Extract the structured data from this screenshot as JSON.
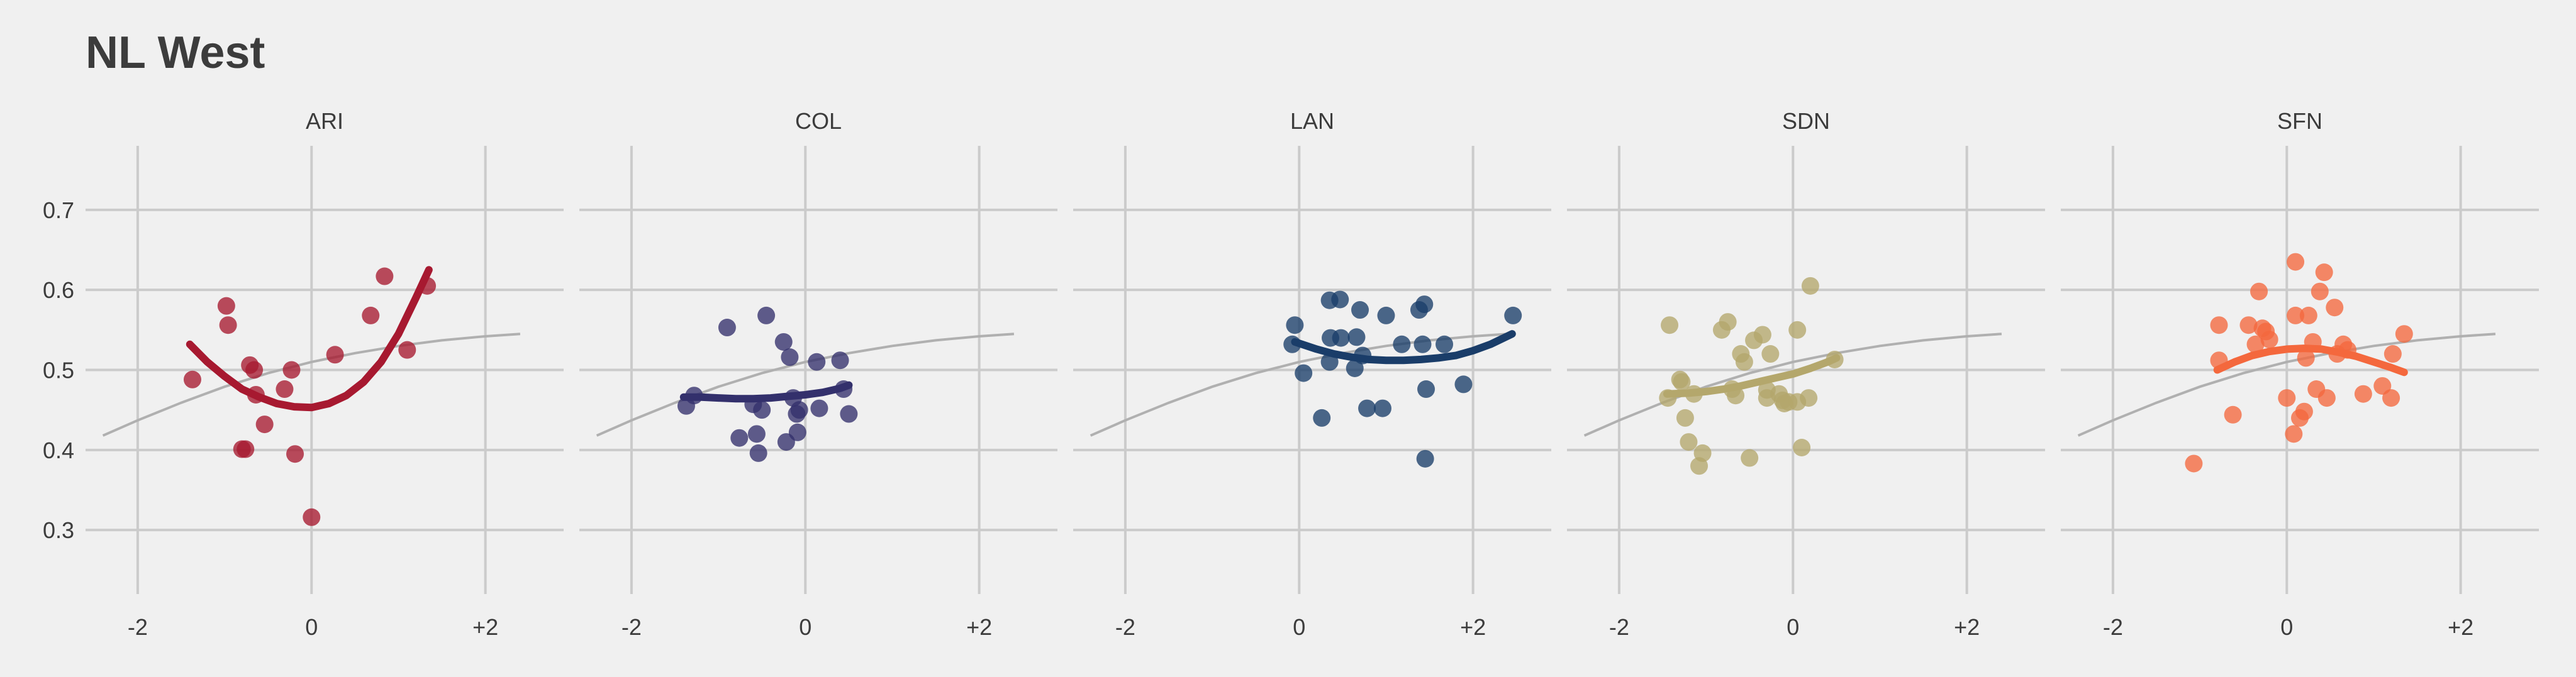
{
  "title": "NL West",
  "colors": {
    "background": "#f0f0f0",
    "grid": "#cbcbcb",
    "reference_curve": "#b0b0b0"
  },
  "chart_data": {
    "type": "scatter",
    "layout": "small-multiples",
    "x_ticks": [
      "-2",
      "0",
      "+2"
    ],
    "x_tick_values": [
      -2,
      0,
      2
    ],
    "y_ticks": [
      "0.3",
      "0.4",
      "0.5",
      "0.6",
      "0.7"
    ],
    "y_tick_values": [
      0.3,
      0.4,
      0.5,
      0.6,
      0.7
    ],
    "xlim": [
      -2.6,
      2.9
    ],
    "ylim": [
      0.22,
      0.78
    ],
    "grid": true,
    "reference_curve": {
      "x": [
        -2.4,
        -2.0,
        -1.5,
        -1.0,
        -0.5,
        0.0,
        0.5,
        1.0,
        1.5,
        2.0,
        2.4
      ],
      "y": [
        0.418,
        0.437,
        0.459,
        0.479,
        0.496,
        0.51,
        0.521,
        0.53,
        0.537,
        0.542,
        0.545
      ]
    },
    "panels": [
      {
        "label": "ARI",
        "color": "#a71930",
        "points": [
          [
            -1.37,
            0.488
          ],
          [
            -0.98,
            0.58
          ],
          [
            -0.96,
            0.556
          ],
          [
            -0.8,
            0.401
          ],
          [
            -0.76,
            0.401
          ],
          [
            -0.71,
            0.506
          ],
          [
            -0.66,
            0.5
          ],
          [
            -0.64,
            0.469
          ],
          [
            -0.54,
            0.432
          ],
          [
            -0.31,
            0.476
          ],
          [
            -0.23,
            0.5
          ],
          [
            -0.19,
            0.395
          ],
          [
            0.0,
            0.316
          ],
          [
            0.27,
            0.519
          ],
          [
            0.68,
            0.568
          ],
          [
            0.84,
            0.617
          ],
          [
            1.1,
            0.525
          ],
          [
            1.33,
            0.605
          ]
        ],
        "fit": {
          "x": [
            -1.4,
            -1.2,
            -1.0,
            -0.8,
            -0.6,
            -0.4,
            -0.2,
            0.0,
            0.2,
            0.4,
            0.6,
            0.8,
            1.0,
            1.2,
            1.35
          ],
          "y": [
            0.532,
            0.51,
            0.492,
            0.476,
            0.466,
            0.458,
            0.454,
            0.453,
            0.458,
            0.468,
            0.485,
            0.51,
            0.545,
            0.59,
            0.625
          ]
        }
      },
      {
        "label": "COL",
        "color": "#33306c",
        "points": [
          [
            -1.37,
            0.455
          ],
          [
            -1.28,
            0.468
          ],
          [
            -0.9,
            0.553
          ],
          [
            -0.76,
            0.415
          ],
          [
            -0.6,
            0.457
          ],
          [
            -0.56,
            0.42
          ],
          [
            -0.54,
            0.396
          ],
          [
            -0.5,
            0.45
          ],
          [
            -0.45,
            0.568
          ],
          [
            -0.25,
            0.535
          ],
          [
            -0.22,
            0.41
          ],
          [
            -0.18,
            0.516
          ],
          [
            -0.14,
            0.465
          ],
          [
            -0.1,
            0.445
          ],
          [
            -0.07,
            0.45
          ],
          [
            -0.09,
            0.422
          ],
          [
            0.13,
            0.51
          ],
          [
            0.16,
            0.452
          ],
          [
            0.4,
            0.512
          ],
          [
            0.44,
            0.476
          ],
          [
            0.5,
            0.445
          ]
        ],
        "fit": {
          "x": [
            -1.4,
            -1.2,
            -1.0,
            -0.8,
            -0.6,
            -0.4,
            -0.2,
            0.0,
            0.2,
            0.4,
            0.5
          ],
          "y": [
            0.466,
            0.466,
            0.465,
            0.464,
            0.464,
            0.465,
            0.467,
            0.469,
            0.472,
            0.477,
            0.481
          ]
        }
      },
      {
        "label": "LAN",
        "color": "#1a3d69",
        "points": [
          [
            -0.05,
            0.556
          ],
          [
            -0.08,
            0.532
          ],
          [
            0.05,
            0.496
          ],
          [
            0.26,
            0.44
          ],
          [
            0.35,
            0.587
          ],
          [
            0.47,
            0.588
          ],
          [
            0.36,
            0.54
          ],
          [
            0.35,
            0.51
          ],
          [
            0.48,
            0.54
          ],
          [
            0.66,
            0.541
          ],
          [
            0.64,
            0.502
          ],
          [
            0.7,
            0.575
          ],
          [
            0.73,
            0.518
          ],
          [
            0.78,
            0.452
          ],
          [
            0.96,
            0.452
          ],
          [
            1.0,
            0.568
          ],
          [
            1.18,
            0.532
          ],
          [
            1.38,
            0.575
          ],
          [
            1.42,
            0.532
          ],
          [
            1.44,
            0.582
          ],
          [
            1.46,
            0.476
          ],
          [
            1.45,
            0.389
          ],
          [
            1.67,
            0.532
          ],
          [
            1.89,
            0.482
          ],
          [
            2.46,
            0.568
          ]
        ],
        "fit": {
          "x": [
            -0.05,
            0.2,
            0.4,
            0.6,
            0.8,
            1.0,
            1.2,
            1.4,
            1.6,
            1.8,
            2.0,
            2.2,
            2.45
          ],
          "y": [
            0.535,
            0.526,
            0.52,
            0.516,
            0.513,
            0.512,
            0.512,
            0.513,
            0.515,
            0.518,
            0.524,
            0.532,
            0.545
          ]
        }
      },
      {
        "label": "SDN",
        "color": "#b4a76c",
        "points": [
          [
            -1.44,
            0.465
          ],
          [
            -1.42,
            0.556
          ],
          [
            -1.3,
            0.488
          ],
          [
            -1.28,
            0.485
          ],
          [
            -1.24,
            0.44
          ],
          [
            -1.2,
            0.41
          ],
          [
            -1.14,
            0.47
          ],
          [
            -1.08,
            0.38
          ],
          [
            -1.04,
            0.396
          ],
          [
            -0.82,
            0.55
          ],
          [
            -0.75,
            0.56
          ],
          [
            -0.7,
            0.476
          ],
          [
            -0.66,
            0.468
          ],
          [
            -0.6,
            0.52
          ],
          [
            -0.56,
            0.51
          ],
          [
            -0.5,
            0.39
          ],
          [
            -0.45,
            0.537
          ],
          [
            -0.35,
            0.544
          ],
          [
            -0.3,
            0.475
          ],
          [
            -0.3,
            0.465
          ],
          [
            -0.26,
            0.52
          ],
          [
            -0.16,
            0.47
          ],
          [
            -0.12,
            0.462
          ],
          [
            -0.1,
            0.458
          ],
          [
            -0.05,
            0.46
          ],
          [
            0.05,
            0.55
          ],
          [
            0.05,
            0.46
          ],
          [
            0.1,
            0.403
          ],
          [
            0.18,
            0.465
          ],
          [
            0.2,
            0.605
          ],
          [
            0.48,
            0.513
          ]
        ],
        "fit": {
          "x": [
            -1.45,
            -1.2,
            -1.0,
            -0.8,
            -0.6,
            -0.4,
            -0.2,
            0.0,
            0.2,
            0.4,
            0.5
          ],
          "y": [
            0.47,
            0.471,
            0.473,
            0.476,
            0.48,
            0.485,
            0.49,
            0.495,
            0.502,
            0.51,
            0.515
          ]
        }
      },
      {
        "label": "SFN",
        "color": "#f4683d",
        "points": [
          [
            -1.07,
            0.383
          ],
          [
            -0.78,
            0.512
          ],
          [
            -0.78,
            0.556
          ],
          [
            -0.62,
            0.444
          ],
          [
            -0.44,
            0.556
          ],
          [
            -0.36,
            0.532
          ],
          [
            -0.32,
            0.598
          ],
          [
            -0.28,
            0.552
          ],
          [
            -0.24,
            0.548
          ],
          [
            -0.2,
            0.538
          ],
          [
            0.0,
            0.465
          ],
          [
            0.08,
            0.42
          ],
          [
            0.1,
            0.635
          ],
          [
            0.1,
            0.568
          ],
          [
            0.15,
            0.44
          ],
          [
            0.2,
            0.448
          ],
          [
            0.22,
            0.515
          ],
          [
            0.25,
            0.568
          ],
          [
            0.3,
            0.535
          ],
          [
            0.34,
            0.476
          ],
          [
            0.38,
            0.598
          ],
          [
            0.43,
            0.622
          ],
          [
            0.46,
            0.465
          ],
          [
            0.55,
            0.578
          ],
          [
            0.58,
            0.52
          ],
          [
            0.65,
            0.532
          ],
          [
            0.7,
            0.525
          ],
          [
            0.88,
            0.47
          ],
          [
            1.1,
            0.48
          ],
          [
            1.2,
            0.465
          ],
          [
            1.22,
            0.52
          ],
          [
            1.35,
            0.545
          ]
        ],
        "fit": {
          "x": [
            -0.8,
            -0.6,
            -0.4,
            -0.2,
            0.0,
            0.2,
            0.4,
            0.6,
            0.8,
            1.0,
            1.2,
            1.35
          ],
          "y": [
            0.5,
            0.51,
            0.518,
            0.523,
            0.526,
            0.527,
            0.526,
            0.522,
            0.517,
            0.51,
            0.503,
            0.497
          ]
        }
      }
    ]
  }
}
